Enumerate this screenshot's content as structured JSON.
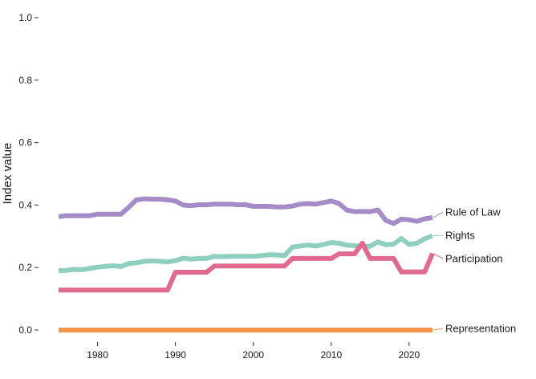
{
  "chart_data": {
    "type": "line",
    "title": "",
    "xlabel": "",
    "ylabel": "Index value",
    "xlim": [
      1975,
      2023
    ],
    "ylim": [
      0,
      1.0
    ],
    "x_ticks": [
      "1980",
      "1990",
      "2000",
      "2010",
      "2020"
    ],
    "y_ticks": [
      "0.0",
      "0.2",
      "0.4",
      "0.6",
      "0.8",
      "1.0"
    ],
    "grid": false,
    "legend": "direct labels at line ends (right)",
    "x": [
      1975,
      1976,
      1977,
      1978,
      1979,
      1980,
      1981,
      1982,
      1983,
      1984,
      1985,
      1986,
      1987,
      1988,
      1989,
      1990,
      1991,
      1992,
      1993,
      1994,
      1995,
      1996,
      1997,
      1998,
      1999,
      2000,
      2001,
      2002,
      2003,
      2004,
      2005,
      2006,
      2007,
      2008,
      2009,
      2010,
      2011,
      2012,
      2013,
      2014,
      2015,
      2016,
      2017,
      2018,
      2019,
      2020,
      2021,
      2022,
      2023
    ],
    "series": [
      {
        "name": "Rule of Law",
        "color": "#a58bc8",
        "values": [
          0.363,
          0.366,
          0.366,
          0.366,
          0.366,
          0.371,
          0.371,
          0.371,
          0.371,
          0.393,
          0.417,
          0.42,
          0.419,
          0.419,
          0.417,
          0.413,
          0.4,
          0.398,
          0.401,
          0.401,
          0.403,
          0.403,
          0.403,
          0.401,
          0.401,
          0.396,
          0.396,
          0.396,
          0.394,
          0.394,
          0.397,
          0.403,
          0.405,
          0.403,
          0.408,
          0.413,
          0.405,
          0.384,
          0.379,
          0.38,
          0.379,
          0.384,
          0.351,
          0.341,
          0.355,
          0.353,
          0.348,
          0.356,
          0.36
        ]
      },
      {
        "name": "Rights",
        "color": "#8fcfbf",
        "values": [
          0.19,
          0.191,
          0.194,
          0.193,
          0.197,
          0.201,
          0.204,
          0.206,
          0.203,
          0.213,
          0.215,
          0.22,
          0.221,
          0.22,
          0.218,
          0.222,
          0.23,
          0.227,
          0.229,
          0.229,
          0.236,
          0.235,
          0.236,
          0.236,
          0.236,
          0.236,
          0.238,
          0.241,
          0.24,
          0.238,
          0.265,
          0.269,
          0.272,
          0.269,
          0.274,
          0.28,
          0.278,
          0.272,
          0.27,
          0.268,
          0.268,
          0.282,
          0.273,
          0.275,
          0.293,
          0.274,
          0.278,
          0.292,
          0.302
        ]
      },
      {
        "name": "Participation",
        "color": "#e06b8f",
        "values": [
          0.128,
          0.128,
          0.128,
          0.128,
          0.128,
          0.128,
          0.128,
          0.128,
          0.128,
          0.128,
          0.128,
          0.128,
          0.128,
          0.128,
          0.128,
          0.185,
          0.185,
          0.185,
          0.185,
          0.185,
          0.205,
          0.205,
          0.205,
          0.205,
          0.205,
          0.205,
          0.205,
          0.205,
          0.205,
          0.205,
          0.229,
          0.229,
          0.229,
          0.229,
          0.229,
          0.229,
          0.244,
          0.244,
          0.244,
          0.278,
          0.229,
          0.229,
          0.229,
          0.229,
          0.186,
          0.186,
          0.186,
          0.186,
          0.245
        ]
      },
      {
        "name": "Representation",
        "color": "#f4964a",
        "values": [
          0,
          0,
          0,
          0,
          0,
          0,
          0,
          0,
          0,
          0,
          0,
          0,
          0,
          0,
          0,
          0,
          0,
          0,
          0,
          0,
          0,
          0,
          0,
          0,
          0,
          0,
          0,
          0,
          0,
          0,
          0,
          0,
          0,
          0,
          0,
          0,
          0,
          0,
          0,
          0,
          0,
          0,
          0,
          0,
          0,
          0,
          0,
          0,
          0
        ]
      }
    ]
  }
}
